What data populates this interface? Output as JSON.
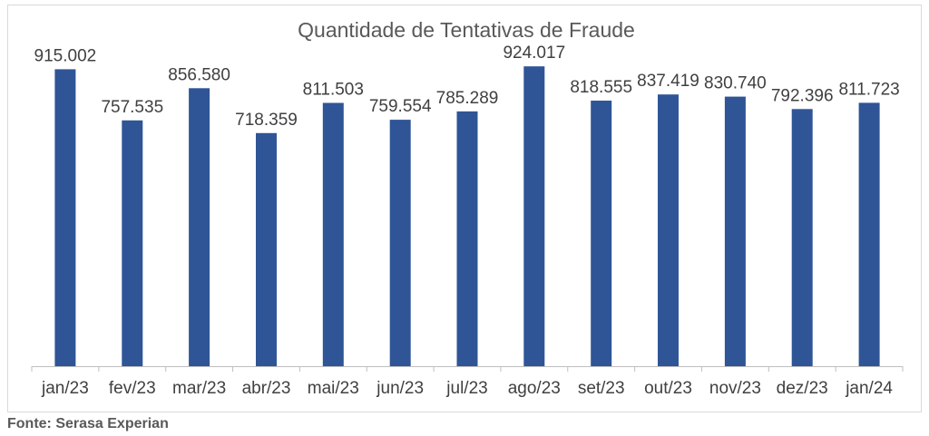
{
  "chart_data": {
    "type": "bar",
    "title": "Quantidade de Tentativas de Fraude",
    "categories": [
      "jan/23",
      "fev/23",
      "mar/23",
      "abr/23",
      "mai/23",
      "jun/23",
      "jul/23",
      "ago/23",
      "set/23",
      "out/23",
      "nov/23",
      "dez/23",
      "jan/24"
    ],
    "values": [
      915002,
      757535,
      856580,
      718359,
      811503,
      759554,
      785289,
      924017,
      818555,
      837419,
      830740,
      792396,
      811723
    ],
    "data_labels": [
      "915.002",
      "757.535",
      "856.580",
      "718.359",
      "811.503",
      "759.554",
      "785.289",
      "924.017",
      "818.555",
      "837.419",
      "830.740",
      "792.396",
      "811.723"
    ],
    "xlabel": "",
    "ylabel": "",
    "ylim": [
      0,
      1000000
    ],
    "grid": false,
    "legend": "none",
    "bar_color": "#2F5597"
  },
  "source": "Fonte: Serasa Experian"
}
